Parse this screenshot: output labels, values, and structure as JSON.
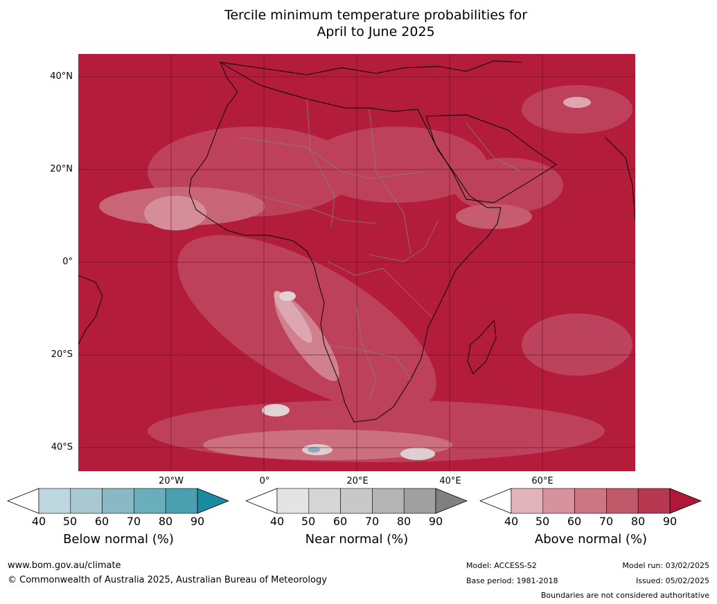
{
  "title": {
    "line1": "Tercile minimum temperature probabilities for",
    "line2": "April to June 2025"
  },
  "map": {
    "region": "Africa and surrounding oceans",
    "lat_labels": [
      "40°N",
      "20°N",
      "0°",
      "20°S",
      "40°S"
    ],
    "lon_labels": [
      "20°W",
      "0°",
      "20°E",
      "40°E",
      "60°E"
    ],
    "dominant_category": "Above normal",
    "dominant_color": "#b41c3c",
    "gridline_color": "#5a1020",
    "boundary_color": "#808080",
    "coastline_color": "#000000"
  },
  "colorbars": [
    {
      "label": "Below normal (%)",
      "ticks": [
        "40",
        "50",
        "60",
        "70",
        "80",
        "90"
      ],
      "colors": [
        "#ffffff",
        "#bed7de",
        "#a8c9d1",
        "#8ab9c5",
        "#6aaebc",
        "#4a9fb0",
        "#1c8ba0"
      ]
    },
    {
      "label": "Near normal (%)",
      "ticks": [
        "40",
        "50",
        "60",
        "70",
        "80",
        "90"
      ],
      "colors": [
        "#ffffff",
        "#e4e4e4",
        "#d6d6d6",
        "#c8c8c8",
        "#b4b4b4",
        "#a0a0a0",
        "#808080"
      ]
    },
    {
      "label": "Above normal (%)",
      "ticks": [
        "40",
        "50",
        "60",
        "70",
        "80",
        "90"
      ],
      "colors": [
        "#ffffff",
        "#e1b4bc",
        "#d6939e",
        "#cb7682",
        "#c05a6a",
        "#b63851",
        "#b0183a"
      ]
    }
  ],
  "footer": {
    "website": "www.bom.gov.au/climate",
    "copyright": "© Commonwealth of Australia 2025, Australian Bureau of Meteorology",
    "model": "Model: ACCESS-S2",
    "base_period": "Base period: 1981-2018",
    "model_run": "Model run: 03/02/2025",
    "issued": "Issued: 05/02/2025",
    "disclaimer": "Boundaries are not considered authoritative"
  }
}
